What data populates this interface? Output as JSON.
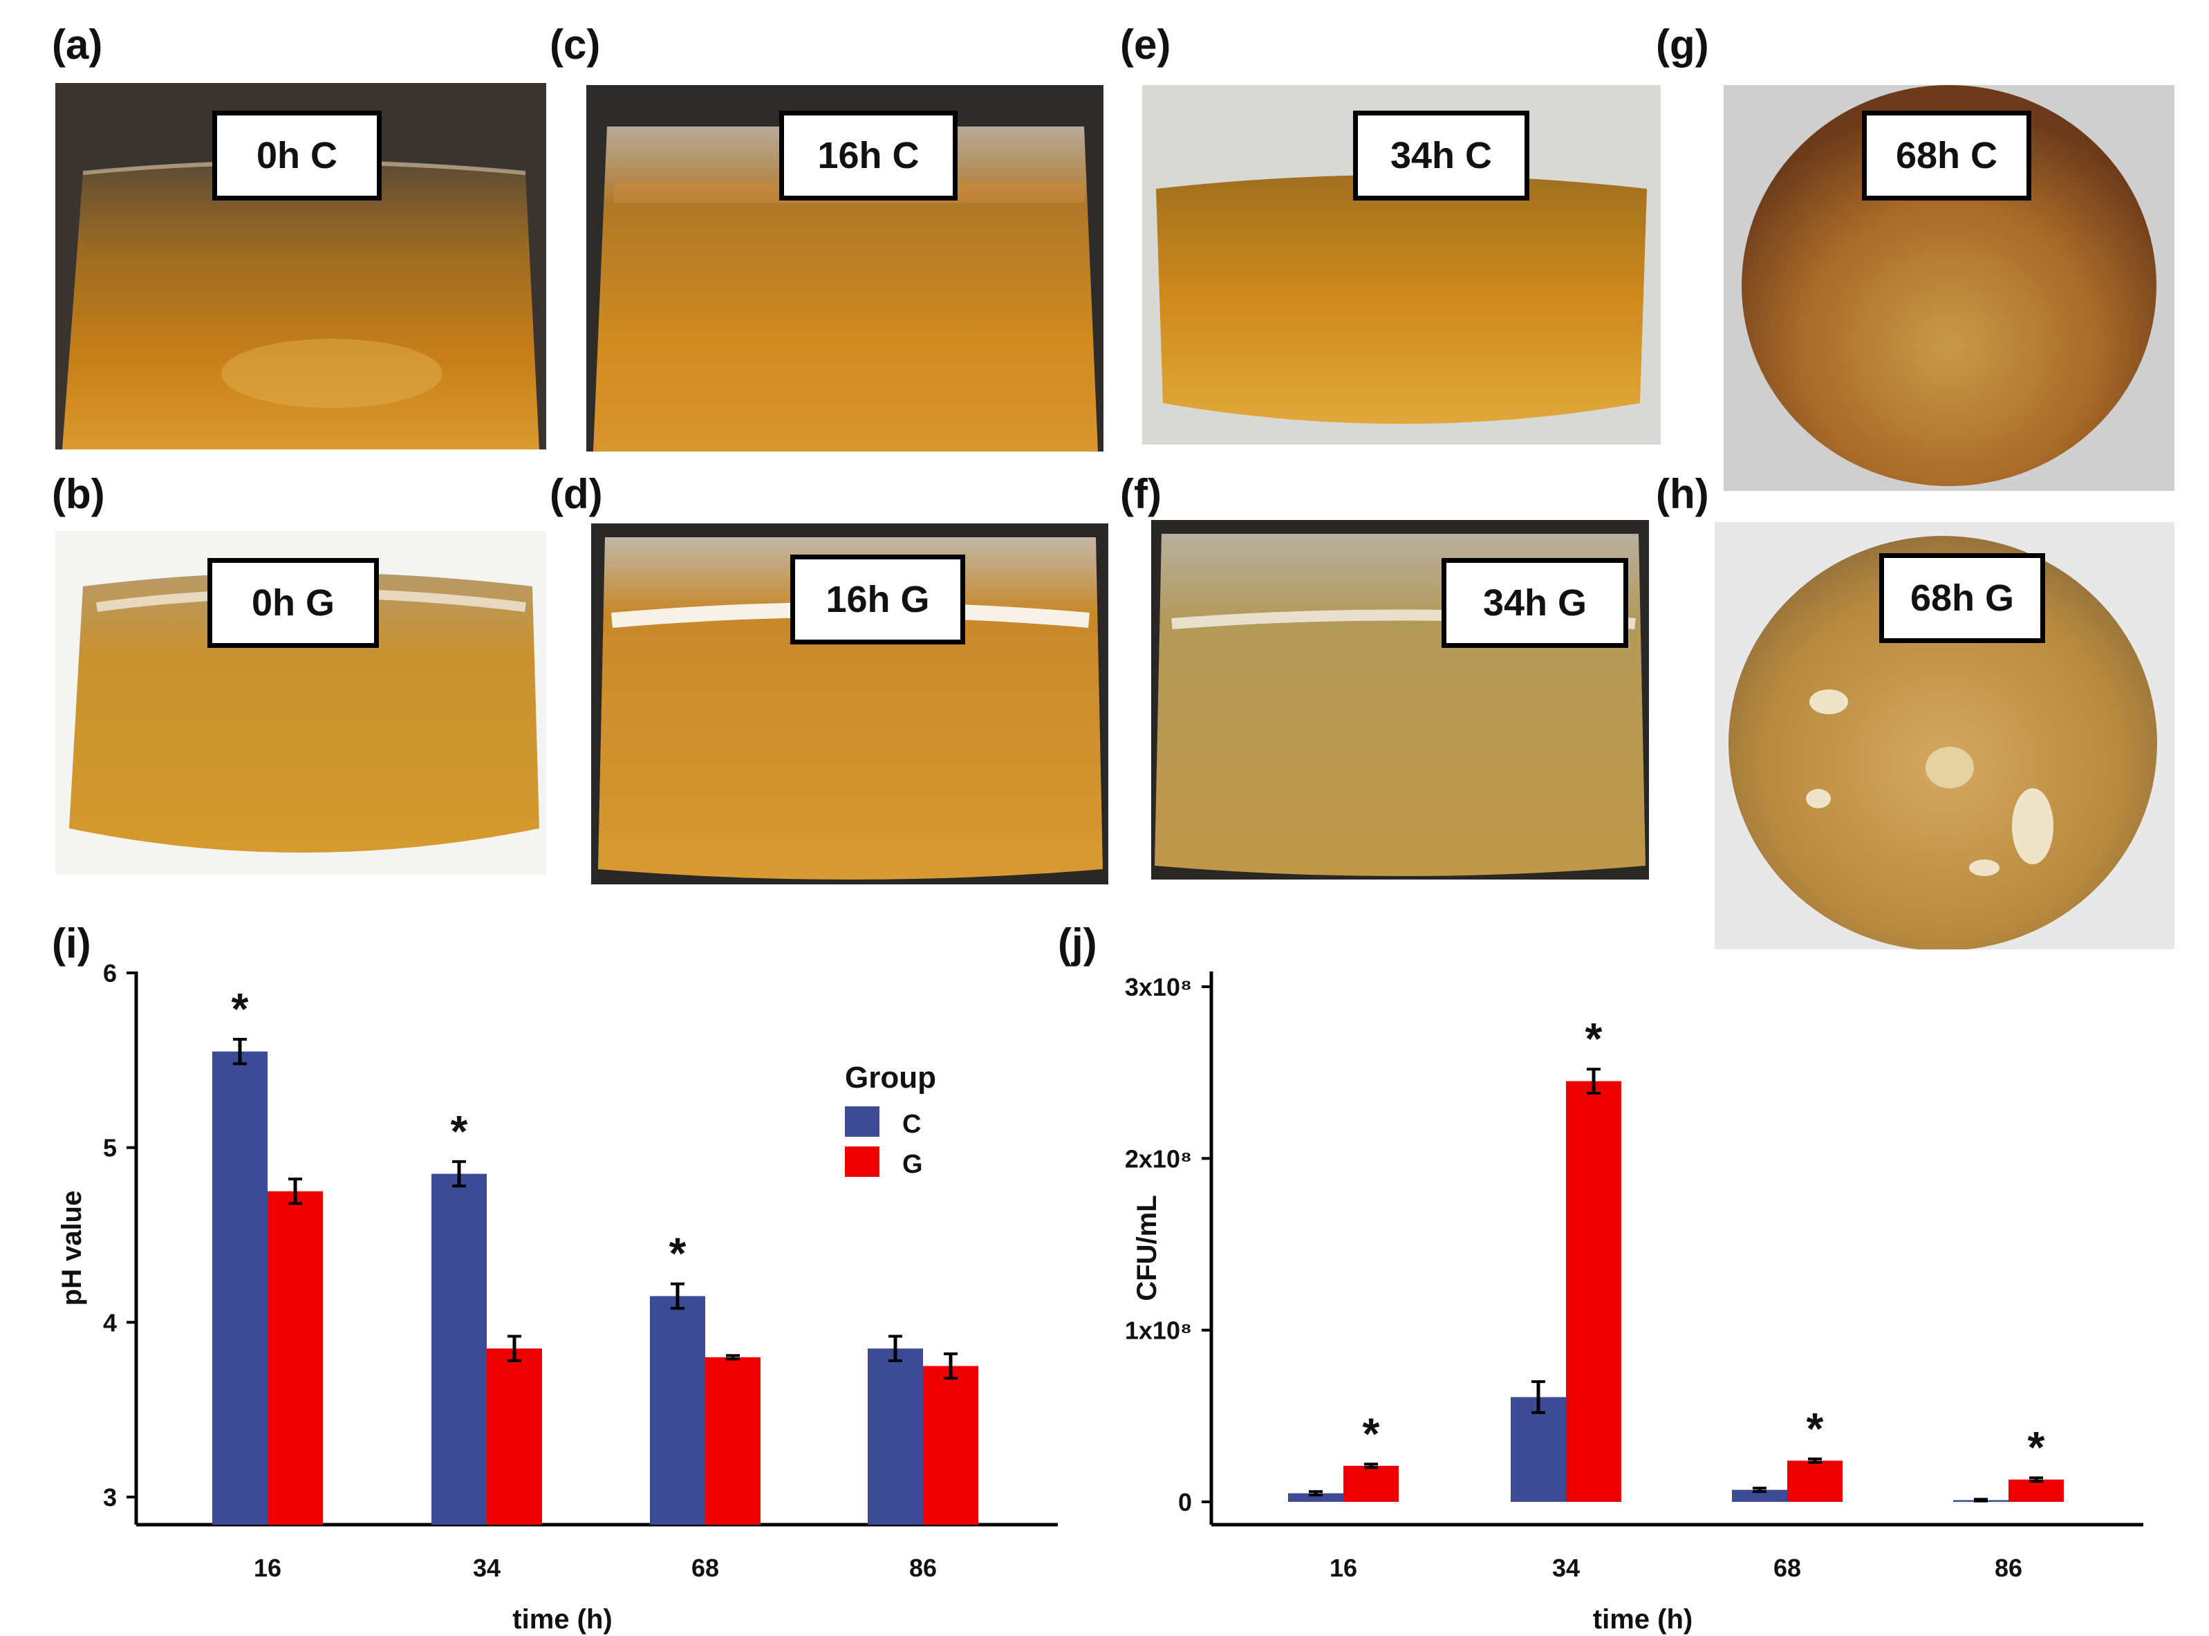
{
  "panels": [
    {
      "letter": "(a)",
      "label": "0h C"
    },
    {
      "letter": "(c)",
      "label": "16h C"
    },
    {
      "letter": "(e)",
      "label": "34h C"
    },
    {
      "letter": "(g)",
      "label": "68h C"
    },
    {
      "letter": "(b)",
      "label": "0h G"
    },
    {
      "letter": "(d)",
      "label": "16h G"
    },
    {
      "letter": "(f)",
      "label": "34h G"
    },
    {
      "letter": "(h)",
      "label": "68h G"
    }
  ],
  "colors": {
    "C": "#3d4a96",
    "G": "#ee0000",
    "broth": "#c98a2a",
    "broth_light": "#d9a85a"
  },
  "chart_data": [
    {
      "panel": "(i)",
      "type": "bar",
      "title": "",
      "xlabel": "time (h)",
      "ylabel": "pH value",
      "categories": [
        "16",
        "34",
        "68",
        "86"
      ],
      "ylim": [
        3,
        6
      ],
      "yticks": [
        "3",
        "4",
        "5",
        "6"
      ],
      "legend_title": "Group",
      "legend_position": "right",
      "series": [
        {
          "name": "C",
          "values": [
            5.55,
            4.85,
            4.15,
            3.85
          ],
          "errors": [
            0.07,
            0.07,
            0.07,
            0.07
          ]
        },
        {
          "name": "G",
          "values": [
            4.75,
            3.85,
            3.8,
            3.75
          ],
          "errors": [
            0.07,
            0.07,
            0.01,
            0.07
          ]
        }
      ],
      "significance": [
        "*",
        "*",
        "*",
        ""
      ]
    },
    {
      "panel": "(j)",
      "type": "bar",
      "title": "",
      "xlabel": "time (h)",
      "ylabel": "CFU/mL",
      "categories": [
        "16",
        "34",
        "68",
        "86"
      ],
      "ylim": [
        0,
        300000000
      ],
      "yticks": [
        "0",
        "1x10⁸",
        "2x10⁸",
        "3x10⁸"
      ],
      "series": [
        {
          "name": "C",
          "values": [
            5000000,
            61000000,
            7000000,
            1000000
          ],
          "errors": [
            1000000,
            9000000,
            1000000,
            500000
          ]
        },
        {
          "name": "G",
          "values": [
            21000000,
            245000000,
            24000000,
            13000000
          ],
          "errors": [
            1000000,
            7000000,
            1000000,
            1000000
          ]
        }
      ],
      "significance": [
        "*",
        "*",
        "*",
        "*"
      ]
    }
  ]
}
